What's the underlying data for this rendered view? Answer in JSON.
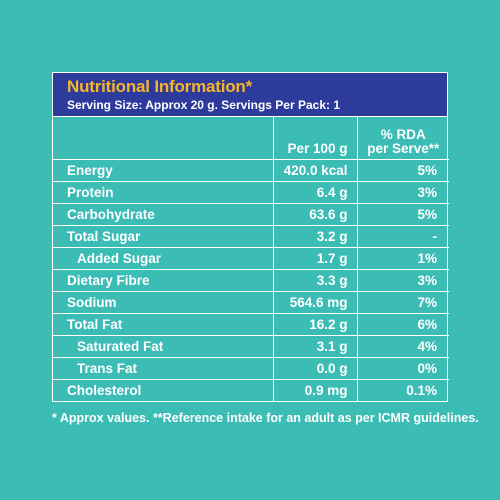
{
  "header": {
    "title": "Nutritional Information*",
    "serving": "Serving Size: Approx 20 g. Servings Per Pack: 1"
  },
  "columns": {
    "per100": "Per 100 g",
    "rda_line1": "% RDA",
    "rda_line2": "per Serve**"
  },
  "rows": [
    {
      "name": "Energy",
      "per100": "420.0 kcal",
      "rda": "5%"
    },
    {
      "name": "Protein",
      "per100": "6.4 g",
      "rda": "3%"
    },
    {
      "name": "Carbohydrate",
      "per100": "63.6 g",
      "rda": "5%"
    },
    {
      "name": "Total Sugar",
      "per100": "3.2 g",
      "rda": "-"
    },
    {
      "name": "Added Sugar",
      "per100": "1.7 g",
      "rda": "1%"
    },
    {
      "name": "Dietary Fibre",
      "per100": "3.3 g",
      "rda": "3%"
    },
    {
      "name": "Sodium",
      "per100": "564.6 mg",
      "rda": "7%"
    },
    {
      "name": "Total Fat",
      "per100": "16.2 g",
      "rda": "6%"
    },
    {
      "name": "Saturated Fat",
      "per100": "3.1 g",
      "rda": "4%"
    },
    {
      "name": "Trans Fat",
      "per100": "0.0 g",
      "rda": "0%"
    },
    {
      "name": "Cholesterol",
      "per100": "0.9 mg",
      "rda": "0.1%"
    }
  ],
  "footnote": "* Approx values. **Reference intake for an adult as per ICMR guidelines.",
  "colors": {
    "background": "#3bbcb5",
    "header_bg": "#2c3b9c",
    "title": "#f5b52e",
    "text": "#ffffff"
  }
}
